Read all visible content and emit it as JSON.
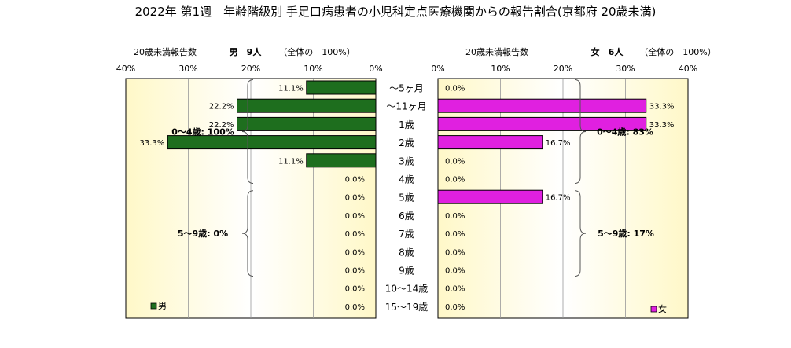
{
  "chart_data": {
    "type": "bar",
    "title": "2022年 第1週　年齢階級別 手足口病患者の小児科定点医療機関からの報告割合(京都府 20歳未満)",
    "categories": [
      "～5ヶ月",
      "～11ヶ月",
      "1歳",
      "2歳",
      "3歳",
      "4歳",
      "5歳",
      "6歳",
      "7歳",
      "8歳",
      "9歳",
      "10～14歳",
      "15～19歳"
    ],
    "xlim": [
      0,
      40
    ],
    "xticks": [
      "0%",
      "10%",
      "20%",
      "30%",
      "40%"
    ],
    "panels": [
      {
        "side": "left",
        "name": "男",
        "color": "#1e6e1e",
        "count_label": "20歳未満報告数",
        "header_bold": "男　9人",
        "header_rest": "（全体の　100%）",
        "values": [
          11.1,
          22.2,
          22.2,
          33.3,
          11.1,
          0,
          0,
          0,
          0,
          0,
          0,
          0,
          0
        ],
        "labels": [
          "11.1%",
          "22.2%",
          "22.2%",
          "33.3%",
          "11.1%",
          "0.0%",
          "0.0%",
          "0.0%",
          "0.0%",
          "0.0%",
          "0.0%",
          "0.0%",
          "0.0%"
        ],
        "group1": "0～4歳: 100%",
        "group2": "5～9歳: 0%",
        "legend": "男"
      },
      {
        "side": "right",
        "name": "女",
        "color": "#e020e0",
        "count_label": "20歳未満報告数",
        "header_bold": "女　6人",
        "header_rest": "（全体の　100%）",
        "values": [
          0,
          33.3,
          33.3,
          16.7,
          0,
          0,
          16.7,
          0,
          0,
          0,
          0,
          0,
          0
        ],
        "labels": [
          "0.0%",
          "33.3%",
          "33.3%",
          "16.7%",
          "0.0%",
          "0.0%",
          "16.7%",
          "0.0%",
          "0.0%",
          "0.0%",
          "0.0%",
          "0.0%",
          "0.0%"
        ],
        "group1": "0～4歳: 83%",
        "group2": "5～9歳: 17%",
        "legend": "女"
      }
    ]
  }
}
